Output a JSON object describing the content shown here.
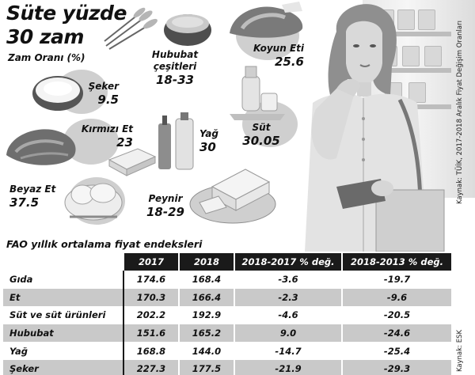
{
  "headline": {
    "line1": "Süte yüzde",
    "line2": "30 zam",
    "subtitle": "Zam Oranı (%)"
  },
  "items": [
    {
      "name": "Şeker",
      "value": "9.5"
    },
    {
      "name": "Kırmızı Et",
      "value": "23"
    },
    {
      "name": "Beyaz Et",
      "value": "37.5"
    },
    {
      "name": "Hububat çeşitleri",
      "name_line1": "Hububat",
      "name_line2": "çeşitleri",
      "value": "18-33"
    },
    {
      "name": "Koyun Eti",
      "value": "25.6"
    },
    {
      "name": "Yağ",
      "value": "30"
    },
    {
      "name": "Süt",
      "value": "30.05"
    },
    {
      "name": "Peynir",
      "value": "18-29"
    }
  ],
  "source_top": "Kaynak: TÜİK, 2017-2018 Aralık Fiyat Değişim Oranları",
  "source_bottom": "Kaynak: ESK",
  "fao": {
    "title": "FAO yıllık ortalama fiyat endeksleri",
    "headers": [
      "",
      "2017",
      "2018",
      "2018-2017 % değ.",
      "2018-2013 % değ."
    ],
    "rows": [
      [
        "Gıda",
        "174.6",
        "168.4",
        "-3.6",
        "-19.7"
      ],
      [
        "Et",
        "170.3",
        "166.4",
        "-2.3",
        "-9.6"
      ],
      [
        "Süt ve süt ürünleri",
        "202.2",
        "192.9",
        "-4.6",
        "-20.5"
      ],
      [
        "Hububat",
        "151.6",
        "165.2",
        "9.0",
        "-24.6"
      ],
      [
        "Yağ",
        "168.8",
        "144.0",
        "-14.7",
        "-25.4"
      ],
      [
        "Şeker",
        "227.3",
        "177.5",
        "-21.9",
        "-29.3"
      ]
    ]
  },
  "colors": {
    "ink": "#111111",
    "header": "#1a1a1a",
    "shade": "#c9c9c9",
    "circle": "#cfcfcf"
  }
}
